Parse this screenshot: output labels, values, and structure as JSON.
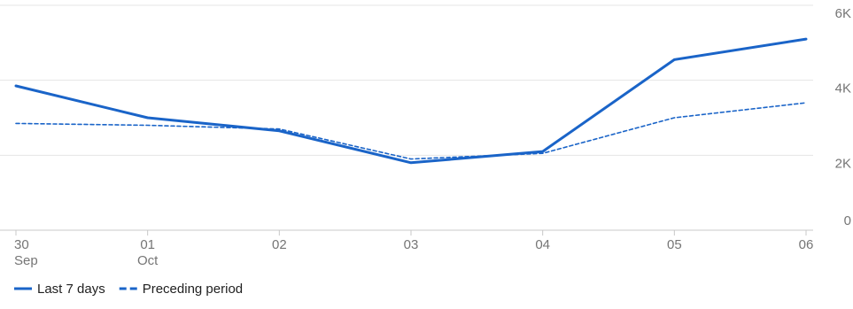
{
  "chart_data": {
    "type": "line",
    "categories": [
      {
        "day": "30",
        "month": "Sep"
      },
      {
        "day": "01",
        "month": "Oct"
      },
      {
        "day": "02",
        "month": ""
      },
      {
        "day": "03",
        "month": ""
      },
      {
        "day": "04",
        "month": ""
      },
      {
        "day": "05",
        "month": ""
      },
      {
        "day": "06",
        "month": ""
      }
    ],
    "series": [
      {
        "name": "Last 7 days",
        "style": "solid",
        "color": "#1a64c8",
        "values": [
          3850,
          3000,
          2650,
          1800,
          2100,
          4550,
          5100
        ]
      },
      {
        "name": "Preceding period",
        "style": "dashed",
        "color": "#1a64c8",
        "values": [
          2850,
          2800,
          2700,
          1900,
          2050,
          3000,
          3400
        ]
      }
    ],
    "y_ticks": [
      "0",
      "2K",
      "4K",
      "6K"
    ],
    "y_tick_values": [
      0,
      2000,
      4000,
      6000
    ],
    "ylim": [
      0,
      6000
    ],
    "y_axis_side": "right",
    "grid": true,
    "legend_position": "bottom-left",
    "title": "",
    "xlabel": "",
    "ylabel": ""
  }
}
